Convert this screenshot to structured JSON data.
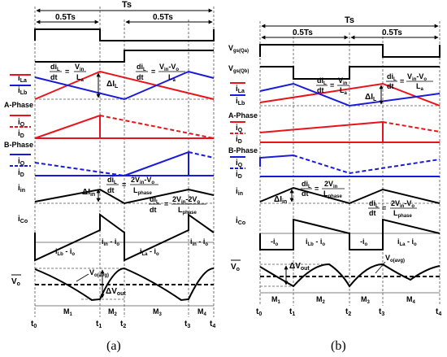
{
  "caption_a": "(a)",
  "caption_b": "(b)",
  "colors": {
    "phase_a": "#e8141b",
    "phase_b": "#1a1adb",
    "ink": "#000000",
    "guide": "#555555"
  },
  "panel_a": {
    "period_label": "Ts",
    "half_label_1": "0.5Ts",
    "half_label_2": "0.5Ts",
    "time_labels": [
      "t",
      "t",
      "t",
      "t",
      "t"
    ],
    "time_subs": [
      "0",
      "1",
      "2",
      "3",
      "4"
    ],
    "signal_labels": {
      "il_a": "i",
      "il_a_sub": "La",
      "il_b": "i",
      "il_b_sub": "Lb",
      "a_phase": "A-Phase",
      "iq_a": "i",
      "iq_a_sub": "Q",
      "id_a": "i",
      "id_a_sub": "D",
      "b_phase": "B-Phase",
      "iq_b": "i",
      "iq_b_sub": "Q",
      "id_b": "i",
      "id_b_sub": "D",
      "iin": "i",
      "iin_sub": "in",
      "ico": "i",
      "ico_sub": "Co",
      "vo": "V",
      "vo_sub": "o"
    },
    "annotations": {
      "di_rise_num": "di",
      "di_rise_num_sub": "L",
      "di_rise_den": "dt",
      "di_rise_eq": "=",
      "di_rise_rhs_num": "V",
      "di_rise_rhs_num_sub": "in",
      "di_rise_rhs_den": "L",
      "di_rise_rhs_den_sub": "a",
      "di_fall_num": "di",
      "di_fall_num_sub": "L",
      "di_fall_den": "dt",
      "di_fall_eq": "=",
      "di_fall_rhs_num": "V",
      "di_fall_rhs_num_sub": "in",
      "di_fall_rhs_num_mid": "-V",
      "di_fall_rhs_num_sub2": "o",
      "di_fall_rhs_den": "L",
      "di_fall_rhs_den_sub": "a",
      "delta_il": "ΔI",
      "delta_il_sub": "L",
      "delta_iin": "ΔI",
      "delta_iin_sub": "in",
      "iin_rise_num": "di",
      "iin_rise_num_sub": "L",
      "iin_rise_den": "dt",
      "iin_rise_eq": "=",
      "iin_rise_rhs_num": "2V",
      "iin_rise_rhs_num_sub": "in",
      "iin_rise_rhs_num_mid": "-V",
      "iin_rise_rhs_num_sub2": "o",
      "iin_rise_rhs_den": "L",
      "iin_rise_rhs_den_sub": "phase",
      "iin_fall_num": "di",
      "iin_fall_num_sub": "L",
      "iin_fall_den": "dt",
      "iin_fall_eq": "=",
      "iin_fall_rhs_num": "2V",
      "iin_fall_rhs_num_sub": "in",
      "iin_fall_rhs_num_mid": "-2V",
      "iin_fall_rhs_num_sub2": "o",
      "iin_fall_rhs_den": "L",
      "iin_fall_rhs_den_sub": "phase",
      "ico_seg1": "i",
      "ico_seg1_sub": "Lb",
      "ico_seg1_tail": " - i",
      "ico_seg1_tail_sub": "o",
      "ico_seg2": "i",
      "ico_seg2_sub": "in",
      "ico_seg2_tail": " - i",
      "ico_seg2_tail_sub": "o",
      "ico_seg3": "i",
      "ico_seg3_sub": "La",
      "ico_seg3_tail": " - i",
      "ico_seg3_tail_sub": "o",
      "ico_seg4": "i",
      "ico_seg4_sub": "in",
      "ico_seg4_tail": " - i",
      "ico_seg4_tail_sub": "o",
      "vo_avg": "V",
      "vo_avg_sub": "o(avg)",
      "delta_vout": "ΔV",
      "delta_vout_sub": "out"
    },
    "modes": [
      "M",
      "M",
      "M",
      "M"
    ],
    "mode_subs": [
      "1",
      "2",
      "3",
      "4"
    ]
  },
  "panel_b": {
    "period_label": "Ts",
    "half_label_1": "0.5Ts",
    "half_label_2": "0.5Ts",
    "time_labels": [
      "t",
      "t",
      "t",
      "t",
      "t"
    ],
    "time_subs": [
      "0",
      "1",
      "2",
      "3",
      "4"
    ],
    "signal_labels": {
      "vgs_qa": "V",
      "vgs_qa_sub": "gs(Qa)",
      "vgs_qb": "V",
      "vgs_qb_sub": "gs(Qb)",
      "il_a": "i",
      "il_a_sub": "La",
      "il_b": "i",
      "il_b_sub": "Lb",
      "a_phase": "A-Phase",
      "iq_a": "i",
      "iq_a_sub": "Q",
      "id_a": "i",
      "id_a_sub": "D",
      "b_phase": "B-Phase",
      "iq_b": "i",
      "iq_b_sub": "Q",
      "id_b": "i",
      "id_b_sub": "D",
      "iin": "i",
      "iin_sub": "in",
      "ico": "i",
      "ico_sub": "Co",
      "vo": "V",
      "vo_sub": "o"
    },
    "annotations": {
      "di_rise_num": "di",
      "di_rise_num_sub": "L",
      "di_rise_den": "dt",
      "di_rise_eq": "=",
      "di_rise_rhs_num": "V",
      "di_rise_rhs_num_sub": "in",
      "di_rise_rhs_den": "L",
      "di_rise_rhs_den_sub": "a",
      "di_fall_num": "di",
      "di_fall_num_sub": "L",
      "di_fall_den": "dt",
      "di_fall_eq": "=",
      "di_fall_rhs_num": "V",
      "di_fall_rhs_num_sub": "in",
      "di_fall_rhs_num_mid": "-V",
      "di_fall_rhs_num_sub2": "o",
      "di_fall_rhs_den": "L",
      "di_fall_rhs_den_sub": "a",
      "delta_il": "ΔI",
      "delta_il_sub": "L",
      "delta_iin": "ΔI",
      "delta_iin_sub": "in",
      "iin_rise_num": "di",
      "iin_rise_num_sub": "L",
      "iin_rise_den": "dt",
      "iin_rise_eq": "=",
      "iin_rise_rhs_num": "2V",
      "iin_rise_rhs_num_sub": "in",
      "iin_rise_rhs_den": "L",
      "iin_rise_rhs_den_sub": "phase",
      "iin_fall_num": "di",
      "iin_fall_num_sub": "L",
      "iin_fall_den": "dt",
      "iin_fall_eq": "=",
      "iin_fall_rhs_num": "2V",
      "iin_fall_rhs_num_sub": "in",
      "iin_fall_rhs_num_mid": "-V",
      "iin_fall_rhs_num_sub2": "o",
      "iin_fall_rhs_den": "L",
      "iin_fall_rhs_den_sub": "phase",
      "ico_seg1": "-i",
      "ico_seg1_sub": "o",
      "ico_seg2": "i",
      "ico_seg2_sub": "Lb",
      "ico_seg2_tail": " - i",
      "ico_seg2_tail_sub": "o",
      "ico_seg3": "-i",
      "ico_seg3_sub": "o",
      "ico_seg4": "i",
      "ico_seg4_sub": "La",
      "ico_seg4_tail": " - i",
      "ico_seg4_tail_sub": "o",
      "vo_avg": "V",
      "vo_avg_sub": "o(avg)",
      "delta_vout": "ΔV",
      "delta_vout_sub": "out"
    },
    "modes": [
      "M",
      "M",
      "M",
      "M"
    ],
    "mode_subs": [
      "1",
      "2",
      "3",
      "4"
    ]
  }
}
